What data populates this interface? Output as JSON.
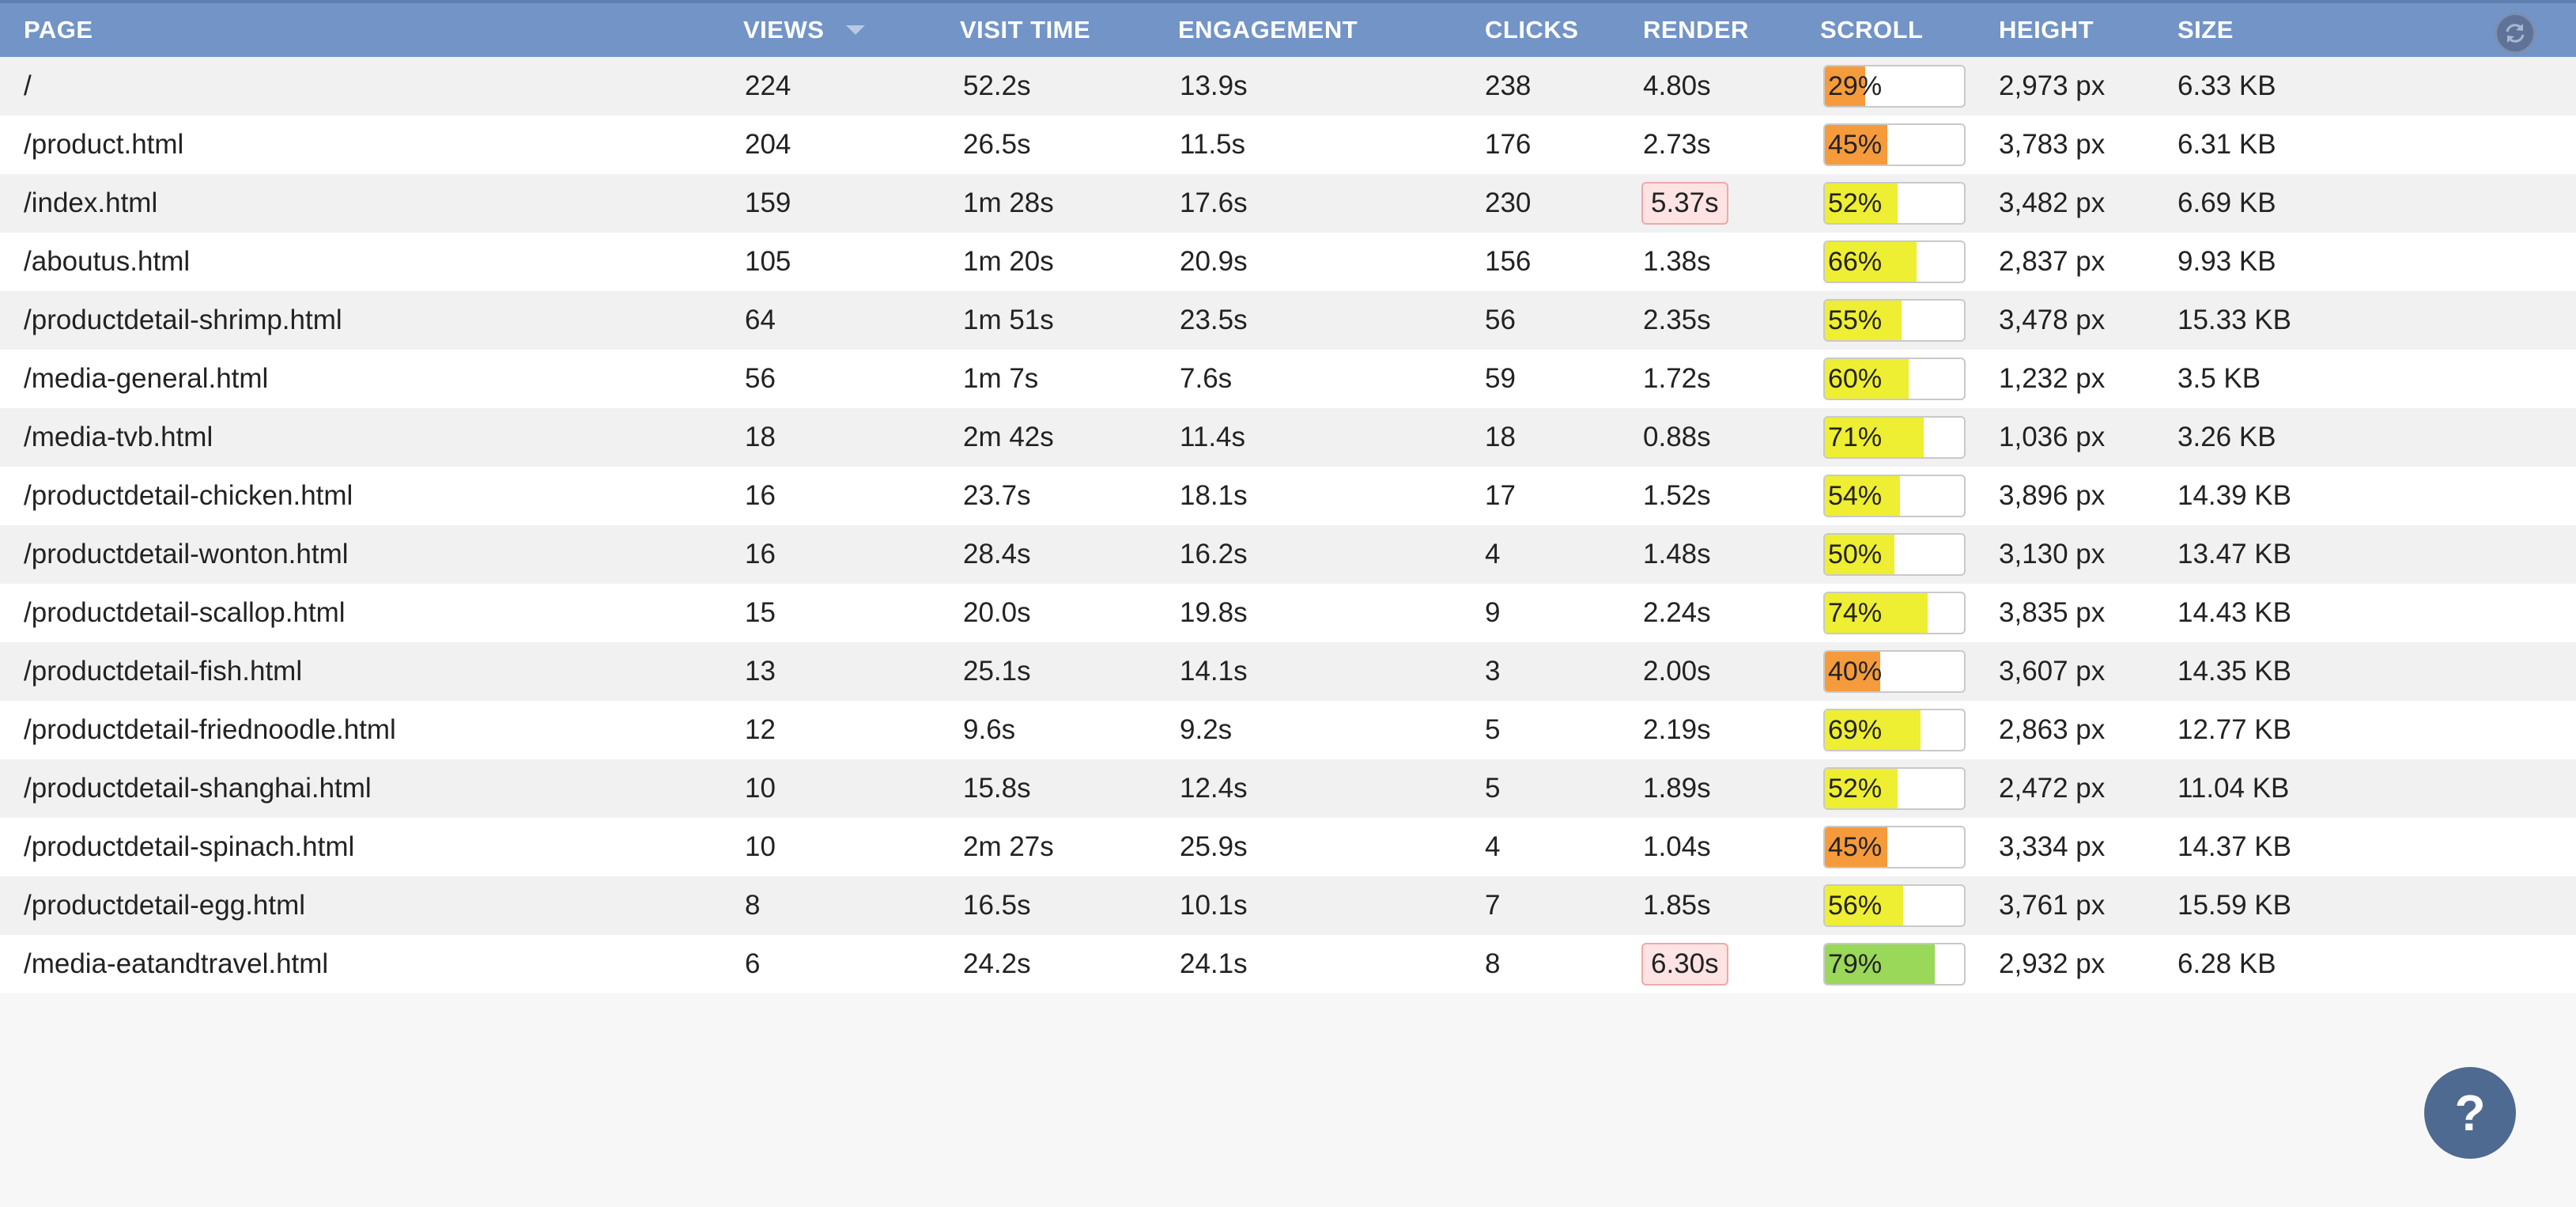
{
  "colors": {
    "header_bg": "#7294c6",
    "low": "#f59b3c",
    "mid": "#eeee33",
    "high": "#9ad859",
    "warn_bg": "#fde3e3"
  },
  "header": {
    "page": "PAGE",
    "views": "VIEWS",
    "visit": "VISIT TIME",
    "engagement": "ENGAGEMENT",
    "clicks": "CLICKS",
    "render": "RENDER",
    "scroll": "SCROLL",
    "height": "HEIGHT",
    "size": "SIZE",
    "sort_icon": "sort-desc-icon",
    "refresh_icon": "refresh-icon"
  },
  "rows": [
    {
      "page": "/",
      "views": "224",
      "visit": "52.2s",
      "engagement": "13.9s",
      "clicks": "238",
      "render": "4.80s",
      "render_warn": false,
      "scroll_pct": 29,
      "scroll_label": "29%",
      "height": "2,973 px",
      "size": "6.33 KB"
    },
    {
      "page": "/product.html",
      "views": "204",
      "visit": "26.5s",
      "engagement": "11.5s",
      "clicks": "176",
      "render": "2.73s",
      "render_warn": false,
      "scroll_pct": 45,
      "scroll_label": "45%",
      "height": "3,783 px",
      "size": "6.31 KB"
    },
    {
      "page": "/index.html",
      "views": "159",
      "visit": "1m 28s",
      "engagement": "17.6s",
      "clicks": "230",
      "render": "5.37s",
      "render_warn": true,
      "scroll_pct": 52,
      "scroll_label": "52%",
      "height": "3,482 px",
      "size": "6.69 KB"
    },
    {
      "page": "/aboutus.html",
      "views": "105",
      "visit": "1m 20s",
      "engagement": "20.9s",
      "clicks": "156",
      "render": "1.38s",
      "render_warn": false,
      "scroll_pct": 66,
      "scroll_label": "66%",
      "height": "2,837 px",
      "size": "9.93 KB"
    },
    {
      "page": "/productdetail-shrimp.html",
      "views": "64",
      "visit": "1m 51s",
      "engagement": "23.5s",
      "clicks": "56",
      "render": "2.35s",
      "render_warn": false,
      "scroll_pct": 55,
      "scroll_label": "55%",
      "height": "3,478 px",
      "size": "15.33 KB"
    },
    {
      "page": "/media-general.html",
      "views": "56",
      "visit": "1m 7s",
      "engagement": "7.6s",
      "clicks": "59",
      "render": "1.72s",
      "render_warn": false,
      "scroll_pct": 60,
      "scroll_label": "60%",
      "height": "1,232 px",
      "size": "3.5 KB"
    },
    {
      "page": "/media-tvb.html",
      "views": "18",
      "visit": "2m 42s",
      "engagement": "11.4s",
      "clicks": "18",
      "render": "0.88s",
      "render_warn": false,
      "scroll_pct": 71,
      "scroll_label": "71%",
      "height": "1,036 px",
      "size": "3.26 KB"
    },
    {
      "page": "/productdetail-chicken.html",
      "views": "16",
      "visit": "23.7s",
      "engagement": "18.1s",
      "clicks": "17",
      "render": "1.52s",
      "render_warn": false,
      "scroll_pct": 54,
      "scroll_label": "54%",
      "height": "3,896 px",
      "size": "14.39 KB"
    },
    {
      "page": "/productdetail-wonton.html",
      "views": "16",
      "visit": "28.4s",
      "engagement": "16.2s",
      "clicks": "4",
      "render": "1.48s",
      "render_warn": false,
      "scroll_pct": 50,
      "scroll_label": "50%",
      "height": "3,130 px",
      "size": "13.47 KB"
    },
    {
      "page": "/productdetail-scallop.html",
      "views": "15",
      "visit": "20.0s",
      "engagement": "19.8s",
      "clicks": "9",
      "render": "2.24s",
      "render_warn": false,
      "scroll_pct": 74,
      "scroll_label": "74%",
      "height": "3,835 px",
      "size": "14.43 KB"
    },
    {
      "page": "/productdetail-fish.html",
      "views": "13",
      "visit": "25.1s",
      "engagement": "14.1s",
      "clicks": "3",
      "render": "2.00s",
      "render_warn": false,
      "scroll_pct": 40,
      "scroll_label": "40%",
      "height": "3,607 px",
      "size": "14.35 KB"
    },
    {
      "page": "/productdetail-friednoodle.html",
      "views": "12",
      "visit": "9.6s",
      "engagement": "9.2s",
      "clicks": "5",
      "render": "2.19s",
      "render_warn": false,
      "scroll_pct": 69,
      "scroll_label": "69%",
      "height": "2,863 px",
      "size": "12.77 KB"
    },
    {
      "page": "/productdetail-shanghai.html",
      "views": "10",
      "visit": "15.8s",
      "engagement": "12.4s",
      "clicks": "5",
      "render": "1.89s",
      "render_warn": false,
      "scroll_pct": 52,
      "scroll_label": "52%",
      "height": "2,472 px",
      "size": "11.04 KB"
    },
    {
      "page": "/productdetail-spinach.html",
      "views": "10",
      "visit": "2m 27s",
      "engagement": "25.9s",
      "clicks": "4",
      "render": "1.04s",
      "render_warn": false,
      "scroll_pct": 45,
      "scroll_label": "45%",
      "height": "3,334 px",
      "size": "14.37 KB"
    },
    {
      "page": "/productdetail-egg.html",
      "views": "8",
      "visit": "16.5s",
      "engagement": "10.1s",
      "clicks": "7",
      "render": "1.85s",
      "render_warn": false,
      "scroll_pct": 56,
      "scroll_label": "56%",
      "height": "3,761 px",
      "size": "15.59 KB"
    },
    {
      "page": "/media-eatandtravel.html",
      "views": "6",
      "visit": "24.2s",
      "engagement": "24.1s",
      "clicks": "8",
      "render": "6.30s",
      "render_warn": true,
      "scroll_pct": 79,
      "scroll_label": "79%",
      "height": "2,932 px",
      "size": "6.28 KB"
    }
  ],
  "help": {
    "label": "?",
    "icon": "help-icon"
  }
}
